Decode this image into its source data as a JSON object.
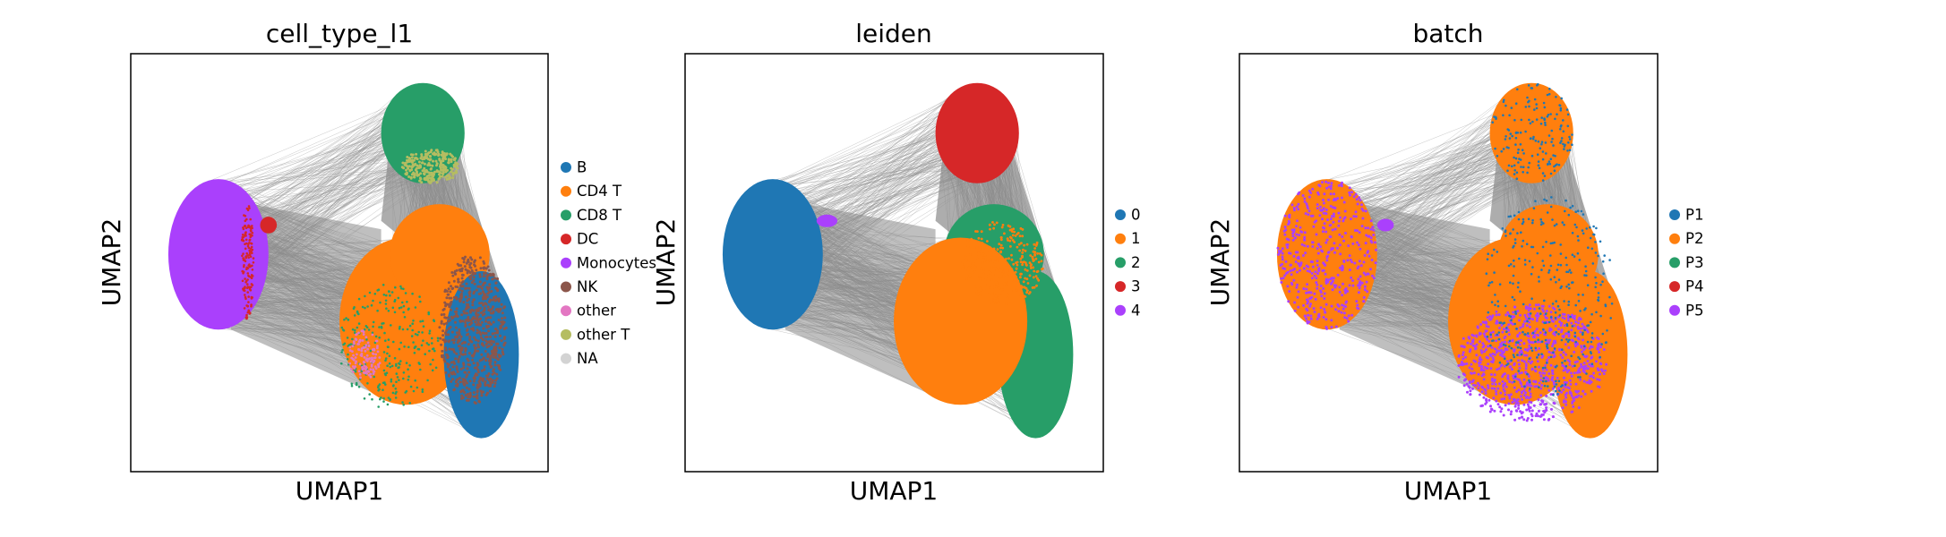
{
  "chart_data": [
    {
      "type": "scatter",
      "title": "cell_type_l1",
      "xlabel": "UMAP1",
      "ylabel": "UMAP2",
      "grid": false,
      "edges": "grey connectivity lines",
      "legend_placement": "right",
      "series": [
        {
          "name": "B",
          "color": "#1f77b4"
        },
        {
          "name": "CD4 T",
          "color": "#ff7f0e"
        },
        {
          "name": "CD8 T",
          "color": "#279e68"
        },
        {
          "name": "DC",
          "color": "#d62728"
        },
        {
          "name": "Monocytes",
          "color": "#aa40fc"
        },
        {
          "name": "NK",
          "color": "#8c564b"
        },
        {
          "name": "other",
          "color": "#e377c2"
        },
        {
          "name": "other T",
          "color": "#b5bd61"
        },
        {
          "name": "NA",
          "color": "#d3d3d3"
        }
      ]
    },
    {
      "type": "scatter",
      "title": "leiden",
      "xlabel": "UMAP1",
      "ylabel": "UMAP2",
      "grid": false,
      "edges": "grey connectivity lines",
      "legend_placement": "right",
      "series": [
        {
          "name": "0",
          "color": "#1f77b4"
        },
        {
          "name": "1",
          "color": "#ff7f0e"
        },
        {
          "name": "2",
          "color": "#279e68"
        },
        {
          "name": "3",
          "color": "#d62728"
        },
        {
          "name": "4",
          "color": "#aa40fc"
        }
      ]
    },
    {
      "type": "scatter",
      "title": "batch",
      "xlabel": "UMAP1",
      "ylabel": "UMAP2",
      "grid": false,
      "edges": "grey connectivity lines",
      "legend_placement": "right",
      "series": [
        {
          "name": "P1",
          "color": "#1f77b4"
        },
        {
          "name": "P2",
          "color": "#ff7f0e"
        },
        {
          "name": "P3",
          "color": "#279e68"
        },
        {
          "name": "P4",
          "color": "#d62728"
        },
        {
          "name": "P5",
          "color": "#aa40fc"
        }
      ]
    }
  ]
}
